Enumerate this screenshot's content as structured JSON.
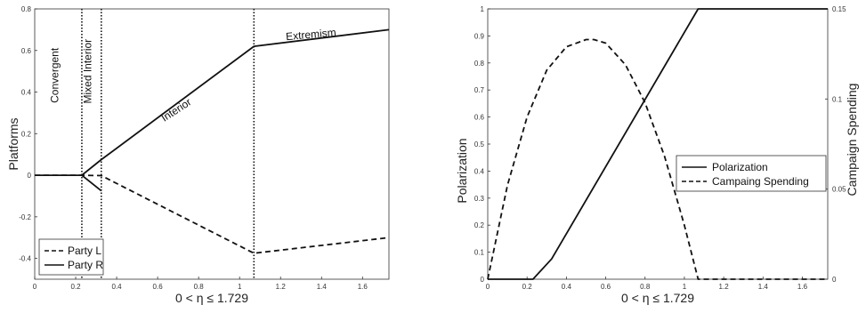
{
  "chart_data": [
    {
      "type": "line",
      "xlabel": "0 < η ≤ 1.729",
      "ylabel": "Platforms",
      "xlim": [
        0,
        1.729
      ],
      "ylim": [
        -0.5,
        0.8
      ],
      "xticks": [
        "0",
        "0.2",
        "0.4",
        "0.6",
        "0.8",
        "1",
        "1.2",
        "1.4",
        "1.6"
      ],
      "yticks": [
        "-0.4",
        "-0.2",
        "0",
        "0.2",
        "0.4",
        "0.6",
        "0.8"
      ],
      "grid": false,
      "legend_position": "bottom-left",
      "series": [
        {
          "name": "Party L",
          "style": "dashed",
          "x": [
            0,
            0.23,
            0.325,
            1.07,
            1.729
          ],
          "y": [
            0,
            0,
            -0.002,
            -0.375,
            -0.3
          ]
        },
        {
          "name": "Party R",
          "style": "solid",
          "x": [
            0,
            0.23,
            0.325,
            1.07,
            1.729
          ],
          "y": [
            0,
            0,
            0.075,
            0.62,
            0.7
          ]
        },
        {
          "name": "",
          "style": "solid",
          "x": [
            0.23,
            0.325
          ],
          "y": [
            0,
            -0.075
          ]
        }
      ],
      "vlines": [
        0.23,
        0.325,
        1.07
      ],
      "annotations": [
        {
          "text": "Convergent",
          "x": 0.115,
          "y": 0.48,
          "rotate": true
        },
        {
          "text": "Mixed Interior",
          "x": 0.275,
          "y": 0.5,
          "rotate": true
        },
        {
          "text": "Interior",
          "x": 0.7,
          "y": 0.3,
          "rotate": false,
          "angle": true
        },
        {
          "text": "Extremism",
          "x": 1.35,
          "y": 0.66,
          "rotate": false,
          "angle": true
        }
      ]
    },
    {
      "type": "line",
      "xlabel": "0 < η ≤ 1.729",
      "ylabel": "Polarization",
      "y2label": "Campaign Spending",
      "xlim": [
        0,
        1.729
      ],
      "ylim": [
        0,
        1
      ],
      "y2lim": [
        0,
        0.15
      ],
      "xticks": [
        "0",
        "0.2",
        "0.4",
        "0.6",
        "0.8",
        "1",
        "1.2",
        "1.4",
        "1.6"
      ],
      "yticks": [
        "0",
        "0.1",
        "0.2",
        "0.3",
        "0.4",
        "0.5",
        "0.6",
        "0.7",
        "0.8",
        "0.9",
        "1"
      ],
      "y2ticks": [
        "0",
        "0.05",
        "0.1",
        "0.15"
      ],
      "grid": false,
      "legend_position": "center-right",
      "series": [
        {
          "name": "Polarization",
          "style": "solid",
          "axis": "left",
          "x": [
            0,
            0.23,
            0.325,
            1.07,
            1.729
          ],
          "y": [
            0,
            0,
            0.075,
            1,
            1
          ]
        },
        {
          "name": "Campaing Spending",
          "style": "dashed",
          "axis": "right",
          "x": [
            0,
            0.1,
            0.2,
            0.3,
            0.4,
            0.5,
            0.54,
            0.6,
            0.7,
            0.8,
            0.9,
            1.0,
            1.07,
            1.2,
            1.4,
            1.6,
            1.729
          ],
          "y": [
            0,
            0.052,
            0.09,
            0.116,
            0.129,
            0.133,
            0.133,
            0.131,
            0.119,
            0.098,
            0.068,
            0.03,
            0,
            0,
            0,
            0,
            0
          ]
        }
      ]
    }
  ]
}
